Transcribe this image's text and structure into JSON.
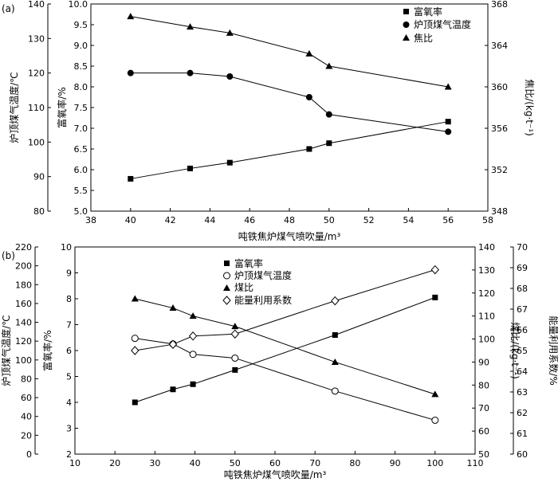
{
  "chart_data": [
    {
      "type": "line",
      "panel_label": "(a)",
      "xlabel": "吨铁焦炉煤气喷吹量/m³",
      "xlim": [
        38,
        58
      ],
      "xticks": [
        38,
        40,
        42,
        44,
        46,
        48,
        50,
        52,
        54,
        56,
        58
      ],
      "axes": {
        "left_outer": {
          "label": "炉顶煤气温度/℃",
          "lim": [
            80,
            140
          ],
          "ticks": [
            80,
            90,
            100,
            110,
            120,
            130,
            140
          ]
        },
        "left_inner": {
          "label": "富氧率/%",
          "lim": [
            5.0,
            10.0
          ],
          "ticks": [
            "5.0",
            "5.5",
            "6.0",
            "6.5",
            "7.0",
            "7.5",
            "8.0",
            "8.5",
            "9.0",
            "9.5",
            "10.0"
          ]
        },
        "right_inner": {
          "label": "焦比/(kg·t⁻¹)",
          "lim": [
            348,
            368
          ],
          "ticks": [
            348,
            352,
            356,
            360,
            364,
            368
          ]
        }
      },
      "legend_position": "top-right",
      "series": [
        {
          "name": "富氧率",
          "marker": "square-filled",
          "axis": "left_inner",
          "x": [
            40,
            43,
            45,
            49,
            50,
            56
          ],
          "y": [
            5.78,
            6.03,
            6.17,
            6.5,
            6.64,
            7.16
          ]
        },
        {
          "name": "炉顶煤气温度",
          "marker": "circle-filled",
          "axis": "left_outer",
          "x": [
            40,
            43,
            45,
            49,
            50,
            56
          ],
          "y": [
            120,
            120,
            119,
            113,
            108,
            103
          ]
        },
        {
          "name": "焦比",
          "marker": "triangle-filled",
          "axis": "right_inner",
          "x": [
            40,
            43,
            45,
            49,
            50,
            56
          ],
          "y": [
            366.8,
            365.8,
            365.2,
            363.2,
            362.0,
            360.0
          ]
        }
      ]
    },
    {
      "type": "line",
      "panel_label": "(b)",
      "xlabel": "吨铁焦炉煤气喷吹量/m³",
      "xlim": [
        10,
        110
      ],
      "xticks": [
        10,
        20,
        30,
        40,
        50,
        60,
        70,
        80,
        90,
        100,
        110
      ],
      "axes": {
        "left_outer": {
          "label": "炉顶煤气温度/℃",
          "lim": [
            0,
            220
          ],
          "ticks": [
            0,
            20,
            40,
            60,
            80,
            100,
            120,
            140,
            160,
            180,
            200,
            220
          ]
        },
        "left_inner": {
          "label": "富氧率/%",
          "lim": [
            2,
            10
          ],
          "ticks": [
            2,
            3,
            4,
            5,
            6,
            7,
            8,
            9,
            10
          ]
        },
        "right_inner": {
          "label": "煤比/(kg·t⁻¹)",
          "lim": [
            50,
            140
          ],
          "ticks": [
            50,
            60,
            70,
            80,
            90,
            100,
            110,
            120,
            130,
            140
          ]
        },
        "right_outer": {
          "label": "能量利用系数/%",
          "lim": [
            60,
            70
          ],
          "ticks": [
            60,
            61,
            62,
            63,
            64,
            65,
            66,
            67,
            68,
            69,
            70
          ]
        }
      },
      "legend_position": "top-center",
      "series": [
        {
          "name": "富氧率",
          "marker": "square-filled",
          "axis": "left_inner",
          "x": [
            25,
            34.5,
            39.5,
            50,
            75,
            100
          ],
          "y": [
            4.0,
            4.5,
            4.7,
            5.25,
            6.6,
            8.05
          ]
        },
        {
          "name": "炉顶煤气温度",
          "marker": "circle-open",
          "axis": "left_outer",
          "x": [
            25,
            34.5,
            39.5,
            50,
            75,
            100
          ],
          "y": [
            123,
            117,
            106,
            102,
            67,
            36
          ]
        },
        {
          "name": "煤比",
          "marker": "triangle-filled",
          "axis": "right_inner",
          "x": [
            25,
            34.5,
            39.5,
            50,
            75,
            100
          ],
          "y": [
            117.5,
            113.5,
            110,
            105.5,
            90,
            76
          ]
        },
        {
          "name": "能量利用系数",
          "marker": "diamond-open",
          "axis": "right_outer",
          "x": [
            25,
            34.5,
            39.5,
            50,
            75,
            100
          ],
          "y": [
            65.0,
            65.3,
            65.7,
            65.8,
            67.4,
            68.9
          ]
        }
      ]
    }
  ]
}
